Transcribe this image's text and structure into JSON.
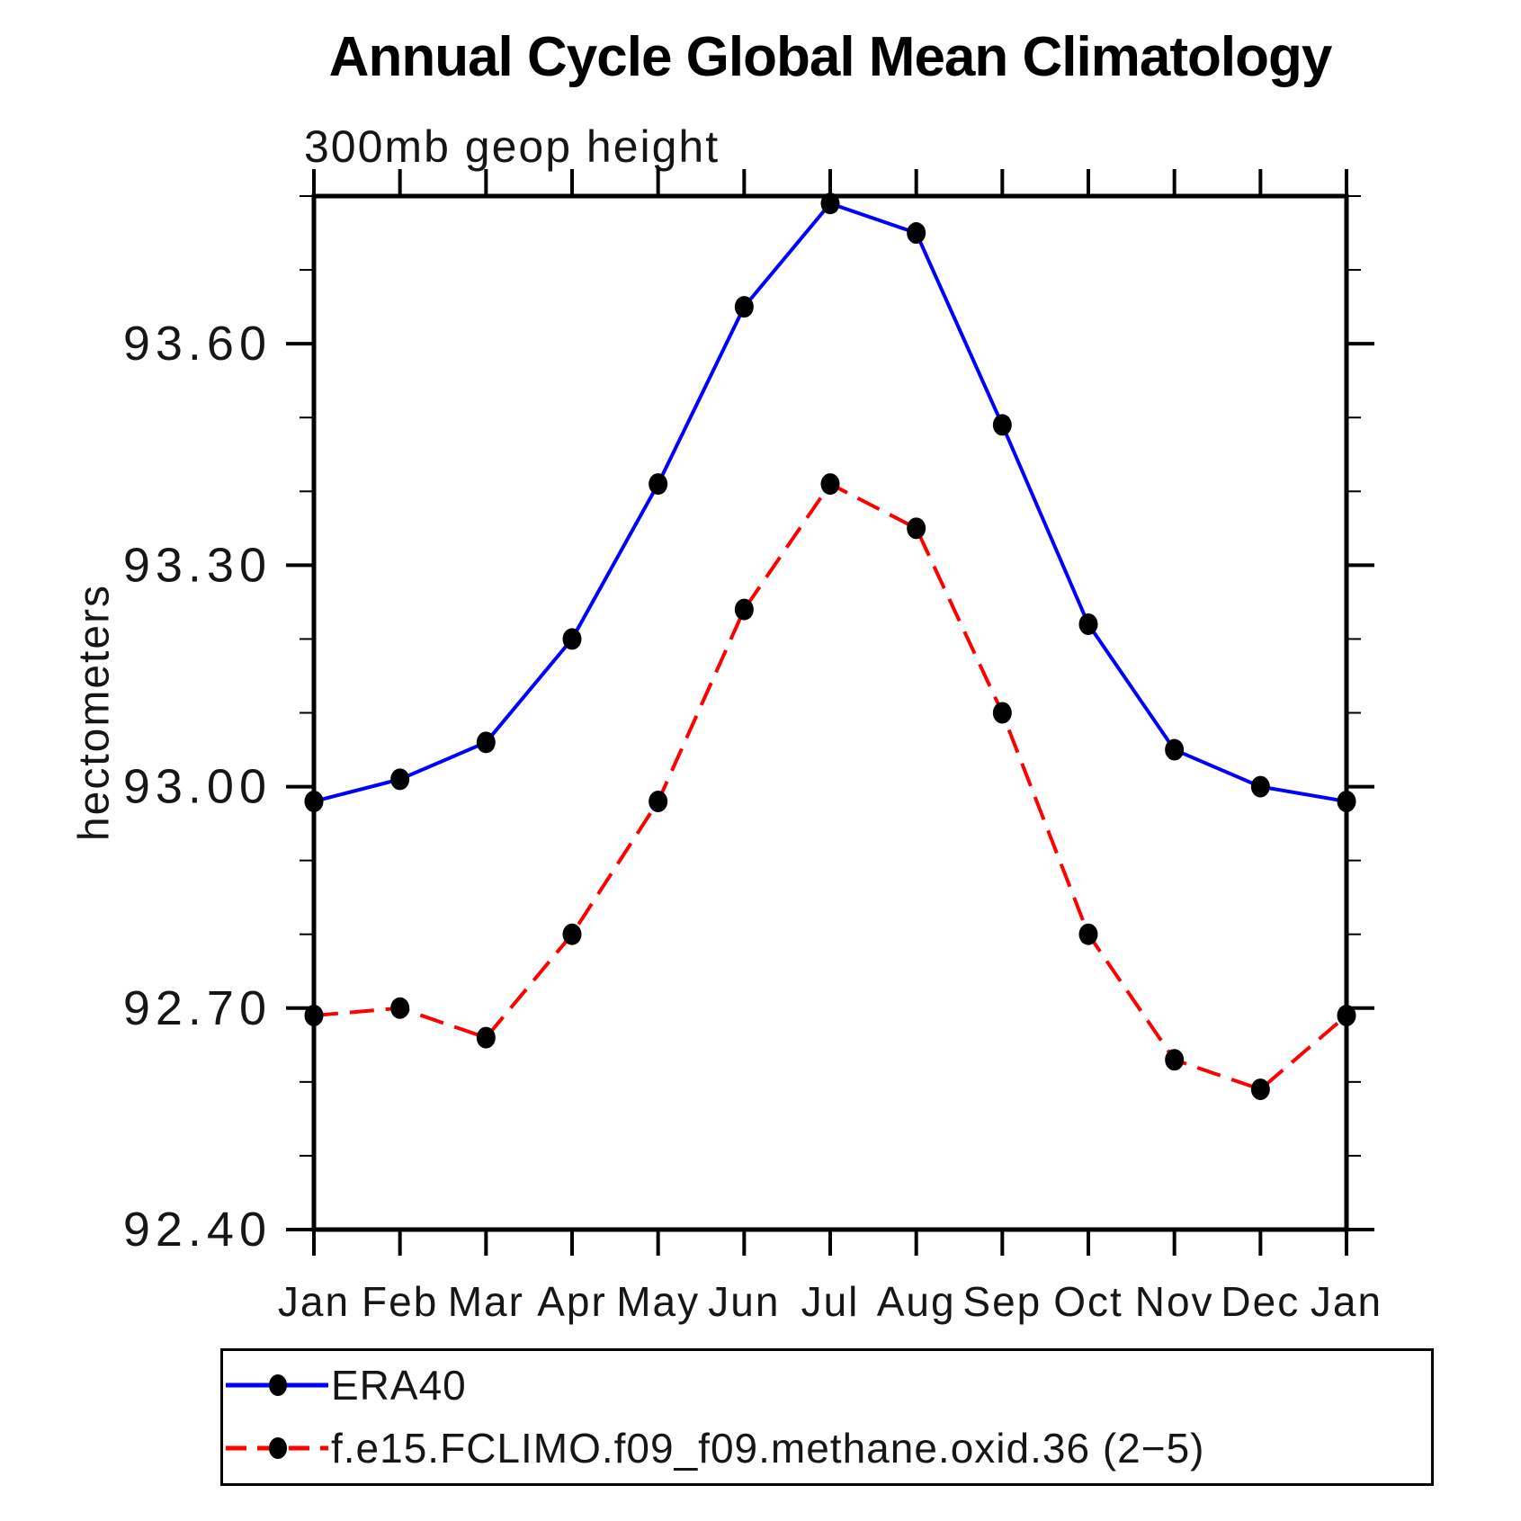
{
  "chart_data": {
    "type": "line",
    "title": "Annual Cycle Global Mean Climatology",
    "subtitle": "300mb geop height",
    "ylabel": "hectometers",
    "x_categories": [
      "Jan",
      "Feb",
      "Mar",
      "Apr",
      "May",
      "Jun",
      "Jul",
      "Aug",
      "Sep",
      "Oct",
      "Nov",
      "Dec",
      "Jan"
    ],
    "ylim": [
      92.4,
      93.8
    ],
    "y_major_ticks": [
      {
        "value": 92.4,
        "label": "92.40"
      },
      {
        "value": 92.7,
        "label": "92.70"
      },
      {
        "value": 93.0,
        "label": "93.00"
      },
      {
        "value": 93.3,
        "label": "93.30"
      },
      {
        "value": 93.6,
        "label": "93.60"
      }
    ],
    "y_minor_ticks": [
      92.5,
      92.6,
      92.8,
      92.9,
      93.1,
      93.2,
      93.4,
      93.5,
      93.7,
      93.8
    ],
    "grid": false,
    "legend_position": "bottom-left-box",
    "series": [
      {
        "name": "ERA40",
        "color": "#0000ff",
        "line_style": "solid",
        "marker": "filled-circle",
        "marker_color": "#000000",
        "values": [
          92.98,
          93.01,
          93.06,
          93.2,
          93.41,
          93.65,
          93.79,
          93.75,
          93.49,
          93.22,
          93.05,
          93.0,
          92.98
        ]
      },
      {
        "name": "f.e15.FCLIMO.f09_f09.methane.oxid.36 (2−5)",
        "color": "#ff0000",
        "line_style": "dashed",
        "marker": "filled-circle",
        "marker_color": "#000000",
        "values": [
          92.69,
          92.7,
          92.66,
          92.8,
          92.98,
          93.24,
          93.41,
          93.35,
          93.1,
          92.8,
          92.63,
          92.59,
          92.69
        ]
      }
    ]
  }
}
